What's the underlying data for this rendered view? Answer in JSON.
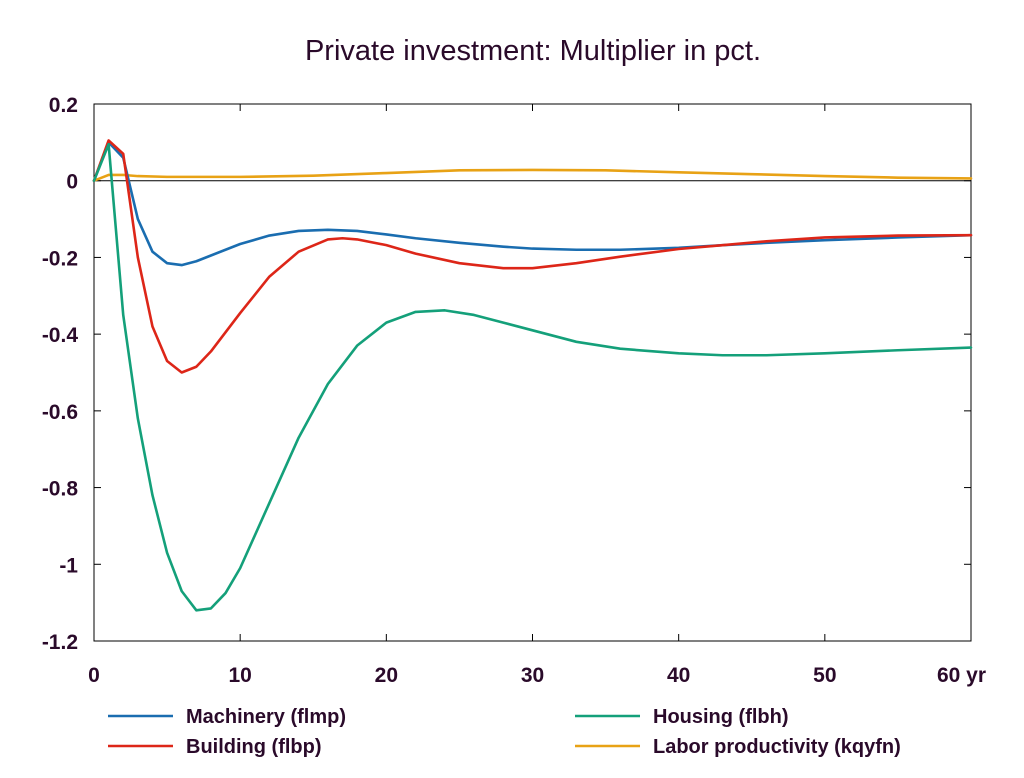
{
  "chart_data": {
    "type": "line",
    "title": "Private investment: Multiplier in pct.",
    "xlabel": "",
    "ylabel": "",
    "x_unit": "yr",
    "xlim": [
      0,
      60
    ],
    "ylim": [
      -1.2,
      0.2
    ],
    "x_ticks": [
      0,
      10,
      20,
      30,
      40,
      50,
      60
    ],
    "x_tick_labels": [
      "0",
      "10",
      "20",
      "30",
      "40",
      "50",
      "60 yr"
    ],
    "y_ticks": [
      0.2,
      0,
      -0.2,
      -0.4,
      -0.6,
      -0.8,
      -1,
      -1.2
    ],
    "y_tick_labels": [
      "0.2",
      "0",
      "-0.2",
      "-0.4",
      "-0.6",
      "-0.8",
      "-1",
      "-1.2"
    ],
    "grid": false,
    "zero_line": true,
    "legend_position": "bottom",
    "series": [
      {
        "name": "Machinery (flmp)",
        "color": "#1a6db0",
        "points": [
          [
            0,
            0
          ],
          [
            1,
            0.1
          ],
          [
            2,
            0.06
          ],
          [
            3,
            -0.1
          ],
          [
            4,
            -0.185
          ],
          [
            5,
            -0.215
          ],
          [
            6,
            -0.22
          ],
          [
            7,
            -0.21
          ],
          [
            8,
            -0.195
          ],
          [
            10,
            -0.165
          ],
          [
            12,
            -0.143
          ],
          [
            14,
            -0.131
          ],
          [
            16,
            -0.128
          ],
          [
            18,
            -0.131
          ],
          [
            20,
            -0.14
          ],
          [
            22,
            -0.15
          ],
          [
            25,
            -0.162
          ],
          [
            28,
            -0.172
          ],
          [
            30,
            -0.177
          ],
          [
            33,
            -0.18
          ],
          [
            36,
            -0.18
          ],
          [
            40,
            -0.175
          ],
          [
            43,
            -0.168
          ],
          [
            46,
            -0.162
          ],
          [
            50,
            -0.155
          ],
          [
            55,
            -0.148
          ],
          [
            60,
            -0.142
          ]
        ]
      },
      {
        "name": "Building (flbp)",
        "color": "#dd2618",
        "points": [
          [
            0,
            0
          ],
          [
            1,
            0.105
          ],
          [
            2,
            0.07
          ],
          [
            3,
            -0.2
          ],
          [
            4,
            -0.38
          ],
          [
            5,
            -0.47
          ],
          [
            6,
            -0.5
          ],
          [
            7,
            -0.485
          ],
          [
            8,
            -0.445
          ],
          [
            10,
            -0.345
          ],
          [
            12,
            -0.25
          ],
          [
            14,
            -0.185
          ],
          [
            16,
            -0.153
          ],
          [
            17,
            -0.15
          ],
          [
            18,
            -0.153
          ],
          [
            20,
            -0.168
          ],
          [
            22,
            -0.19
          ],
          [
            25,
            -0.215
          ],
          [
            28,
            -0.228
          ],
          [
            30,
            -0.228
          ],
          [
            33,
            -0.215
          ],
          [
            36,
            -0.198
          ],
          [
            40,
            -0.178
          ],
          [
            43,
            -0.168
          ],
          [
            46,
            -0.158
          ],
          [
            50,
            -0.148
          ],
          [
            55,
            -0.143
          ],
          [
            60,
            -0.142
          ]
        ]
      },
      {
        "name": "Housing (flbh)",
        "color": "#14a07a",
        "points": [
          [
            0,
            0
          ],
          [
            1,
            0.095
          ],
          [
            2,
            -0.35
          ],
          [
            3,
            -0.62
          ],
          [
            4,
            -0.82
          ],
          [
            5,
            -0.97
          ],
          [
            6,
            -1.07
          ],
          [
            7,
            -1.12
          ],
          [
            8,
            -1.115
          ],
          [
            9,
            -1.075
          ],
          [
            10,
            -1.01
          ],
          [
            12,
            -0.84
          ],
          [
            14,
            -0.67
          ],
          [
            16,
            -0.53
          ],
          [
            18,
            -0.43
          ],
          [
            20,
            -0.37
          ],
          [
            22,
            -0.342
          ],
          [
            24,
            -0.338
          ],
          [
            26,
            -0.35
          ],
          [
            28,
            -0.37
          ],
          [
            30,
            -0.39
          ],
          [
            33,
            -0.42
          ],
          [
            36,
            -0.438
          ],
          [
            40,
            -0.45
          ],
          [
            43,
            -0.455
          ],
          [
            46,
            -0.455
          ],
          [
            50,
            -0.45
          ],
          [
            55,
            -0.442
          ],
          [
            60,
            -0.435
          ]
        ]
      },
      {
        "name": "Labor productivity (kqyfn)",
        "color": "#e8a215",
        "points": [
          [
            0,
            0
          ],
          [
            1,
            0.015
          ],
          [
            2,
            0.015
          ],
          [
            3,
            0.012
          ],
          [
            5,
            0.01
          ],
          [
            10,
            0.01
          ],
          [
            15,
            0.013
          ],
          [
            20,
            0.02
          ],
          [
            25,
            0.027
          ],
          [
            30,
            0.028
          ],
          [
            35,
            0.027
          ],
          [
            40,
            0.022
          ],
          [
            45,
            0.017
          ],
          [
            50,
            0.012
          ],
          [
            55,
            0.008
          ],
          [
            60,
            0.006
          ]
        ]
      }
    ]
  }
}
